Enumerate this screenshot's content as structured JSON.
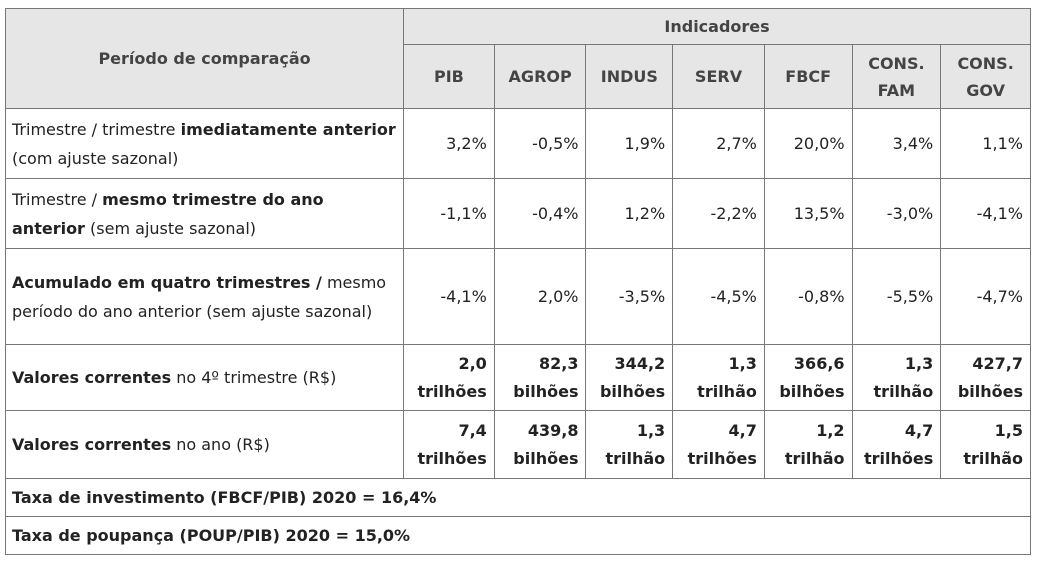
{
  "header": {
    "period_label": "Período de comparação",
    "indicators_label": "Indicadores",
    "columns": [
      "PIB",
      "AGROP",
      "INDUS",
      "SERV",
      "FBCF",
      "CONS. FAM",
      "CONS. GOV"
    ]
  },
  "rows": [
    {
      "label_pre": "Trimestre / trimestre ",
      "label_bold": "imediatamente anterior",
      "label_post": " (com ajuste sazonal)",
      "values": [
        "3,2%",
        "-0,5%",
        "1,9%",
        "2,7%",
        "20,0%",
        "3,4%",
        "1,1%"
      ]
    },
    {
      "label_pre": "Trimestre / ",
      "label_bold": "mesmo trimestre do ano anterior",
      "label_post": " (sem ajuste sazonal)",
      "values": [
        "-1,1%",
        "-0,4%",
        "1,2%",
        "-2,2%",
        "13,5%",
        "-3,0%",
        "-4,1%"
      ]
    },
    {
      "label_pre": "",
      "label_bold": "Acumulado em quatro trimestres /",
      "label_post": " mesmo período do ano anterior (sem ajuste sazonal)",
      "values": [
        "-4,1%",
        "2,0%",
        "-3,5%",
        "-4,5%",
        "-0,8%",
        "-5,5%",
        "-4,7%"
      ]
    },
    {
      "label_pre": "",
      "label_bold": "Valores correntes",
      "label_post": " no 4º trimestre (R$)",
      "values": [
        {
          "num": "2,0",
          "unit": "trilhões"
        },
        {
          "num": "82,3",
          "unit": "bilhões"
        },
        {
          "num": "344,2",
          "unit": "bilhões"
        },
        {
          "num": "1,3",
          "unit": "trilhão"
        },
        {
          "num": "366,6",
          "unit": "bilhões"
        },
        {
          "num": "1,3",
          "unit": "trilhão"
        },
        {
          "num": "427,7",
          "unit": "bilhões"
        }
      ]
    },
    {
      "label_pre": "",
      "label_bold": "Valores correntes",
      "label_post": " no ano (R$)",
      "values": [
        {
          "num": "7,4",
          "unit": "trilhões"
        },
        {
          "num": "439,8",
          "unit": "bilhões"
        },
        {
          "num": "1,3",
          "unit": "trilhão"
        },
        {
          "num": "4,7",
          "unit": "trilhões"
        },
        {
          "num": "1,2",
          "unit": "trilhão"
        },
        {
          "num": "4,7",
          "unit": "trilhões"
        },
        {
          "num": "1,5",
          "unit": "trilhão"
        }
      ]
    }
  ],
  "footer": [
    "Taxa de investimento (FBCF/PIB) 2020 = 16,4%",
    "Taxa de poupança (POUP/PIB) 2020 = 15,0%"
  ]
}
